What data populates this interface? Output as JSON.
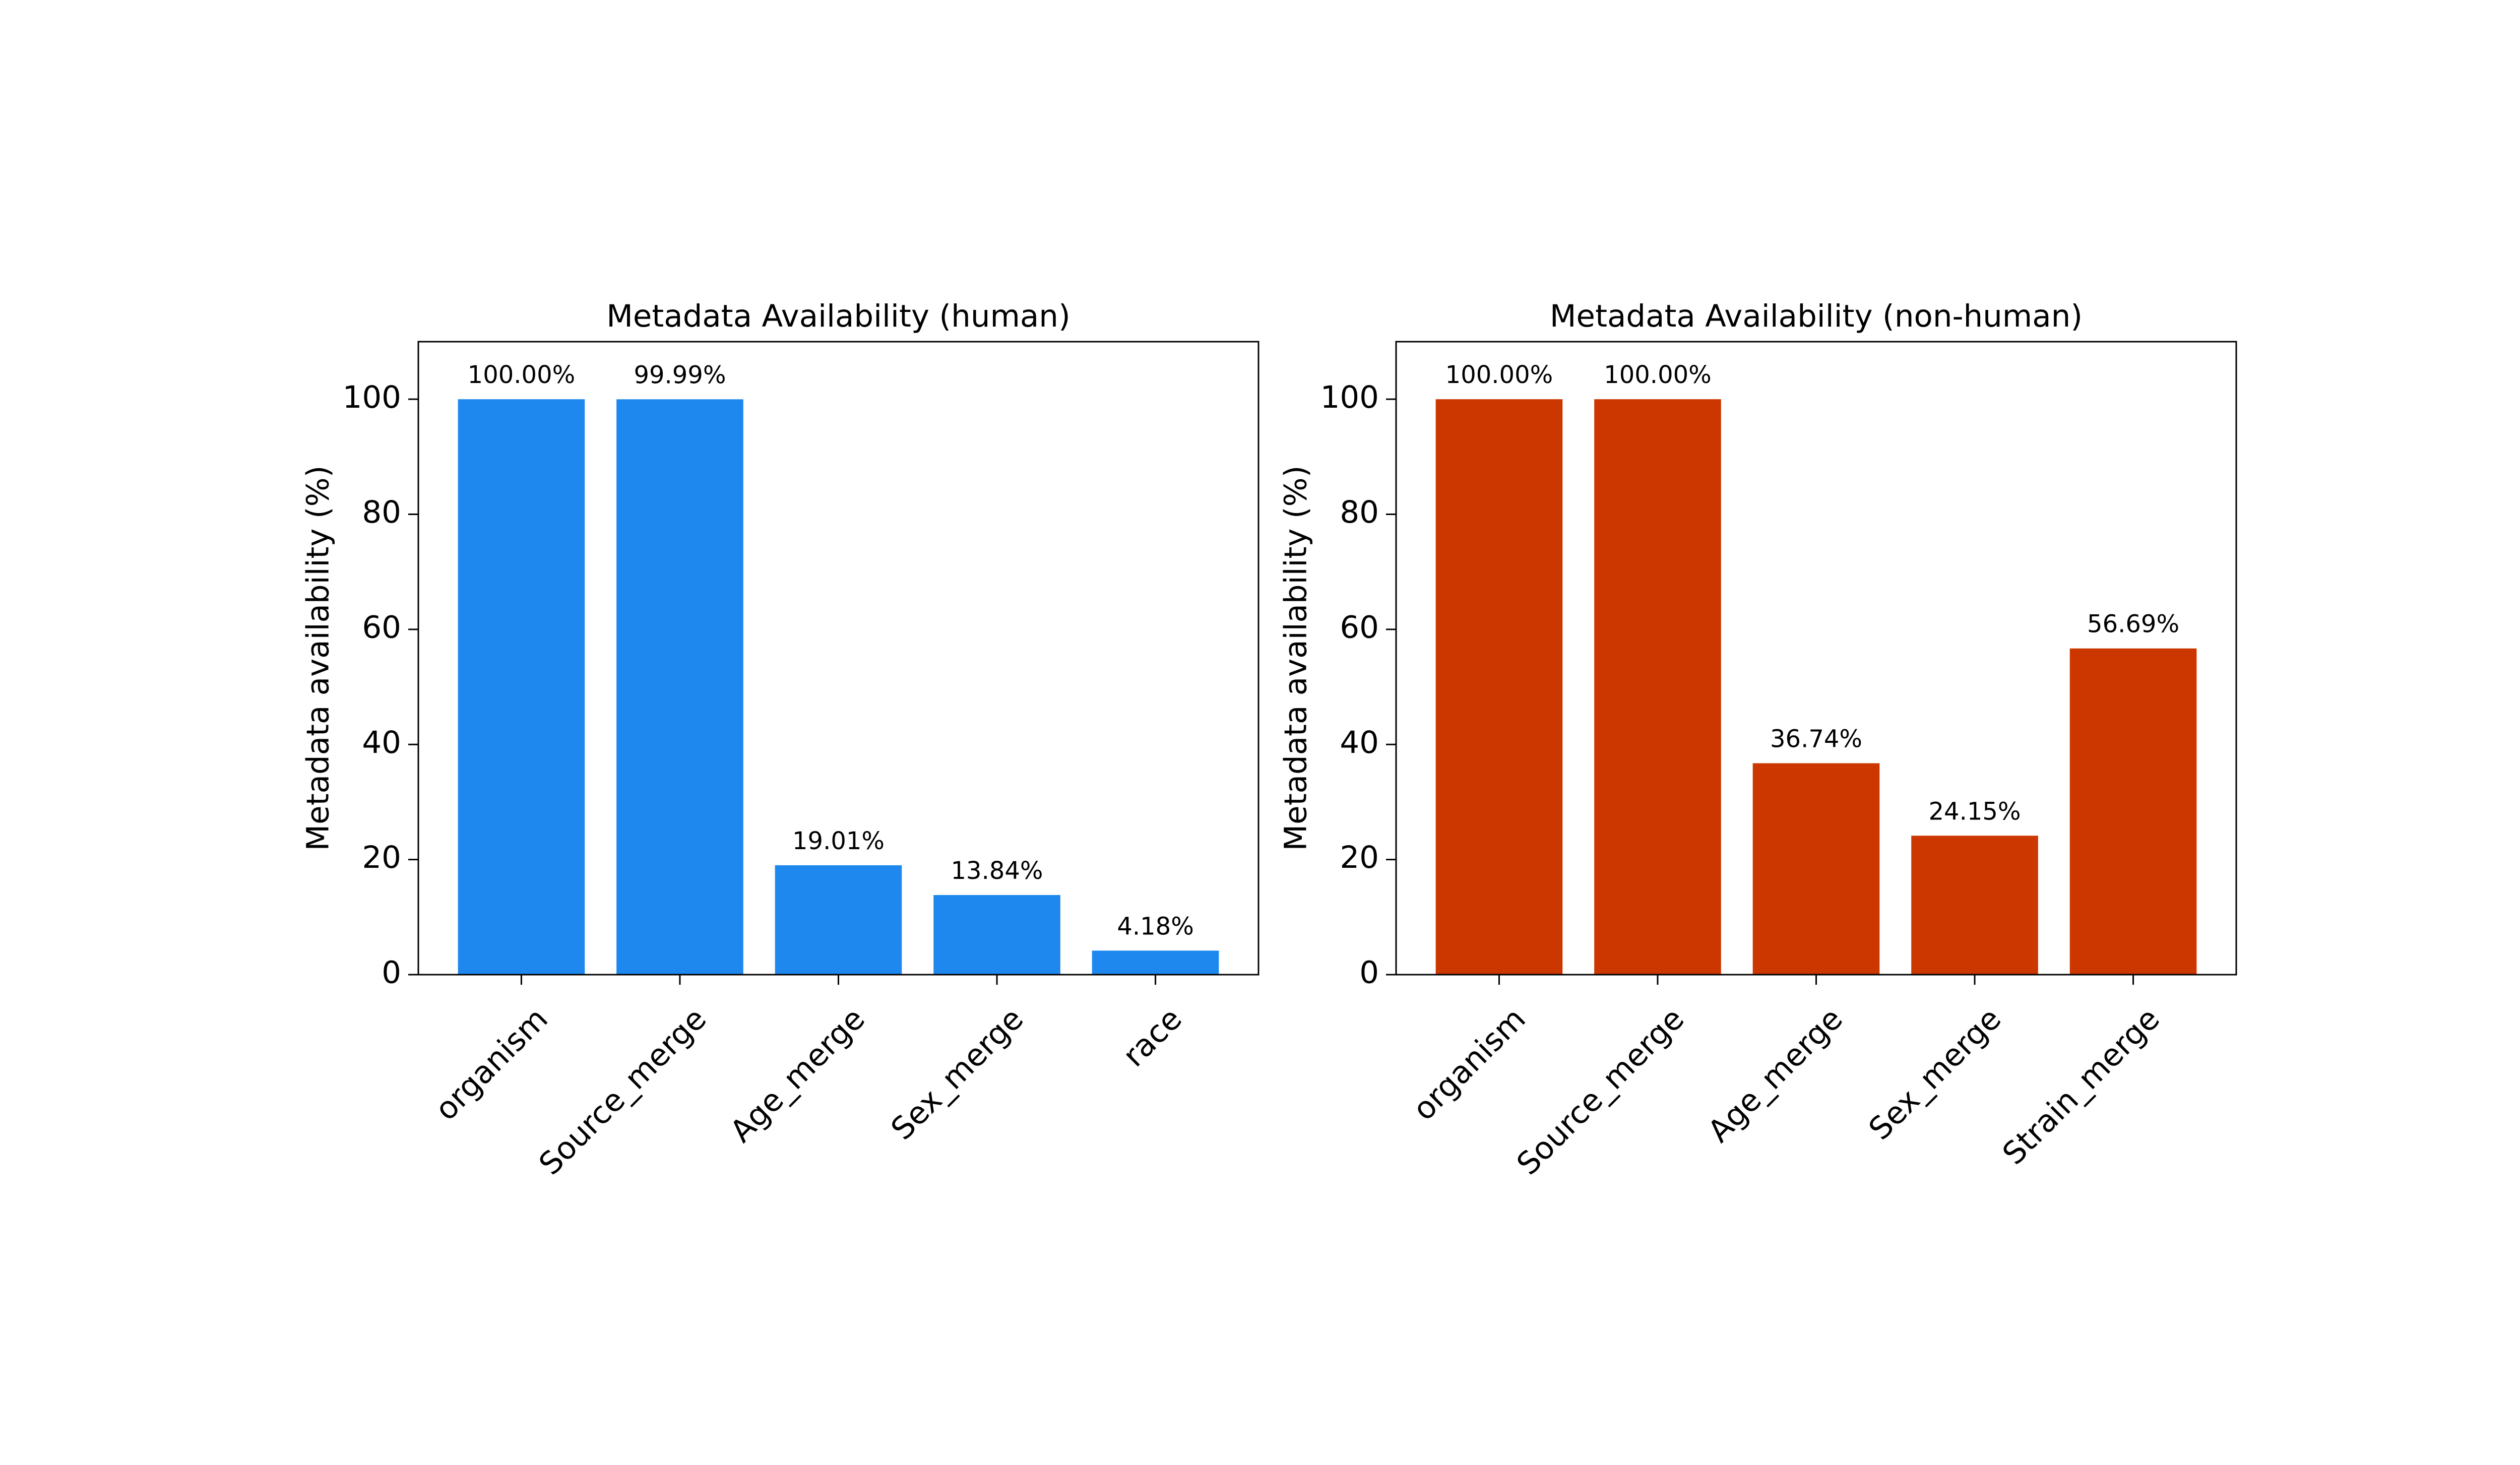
{
  "chart_data": [
    {
      "type": "bar",
      "title": "Metadata Availability (human)",
      "xlabel": "",
      "ylabel": "Metadata availability (%)",
      "ylim": [
        0,
        110
      ],
      "yticks": [
        0,
        20,
        40,
        60,
        80,
        100
      ],
      "categories": [
        "organism",
        "Source_merge",
        "Age_merge",
        "Sex_merge",
        "race"
      ],
      "values": [
        100.0,
        99.99,
        19.01,
        13.84,
        4.18
      ],
      "data_labels": [
        "100.00%",
        "99.99%",
        "19.01%",
        "13.84%",
        "4.18%"
      ],
      "bar_color": "#1e88ef",
      "grid": false,
      "legend": "none"
    },
    {
      "type": "bar",
      "title": "Metadata Availability (non-human)",
      "xlabel": "",
      "ylabel": "Metadata availability (%)",
      "ylim": [
        0,
        110
      ],
      "yticks": [
        0,
        20,
        40,
        60,
        80,
        100
      ],
      "categories": [
        "organism",
        "Source_merge",
        "Age_merge",
        "Sex_merge",
        "Strain_merge"
      ],
      "values": [
        100.0,
        100.0,
        36.74,
        24.15,
        56.69
      ],
      "data_labels": [
        "100.00%",
        "100.00%",
        "36.74%",
        "24.15%",
        "56.69%"
      ],
      "bar_color": "#cc3700",
      "grid": false,
      "legend": "none"
    }
  ]
}
